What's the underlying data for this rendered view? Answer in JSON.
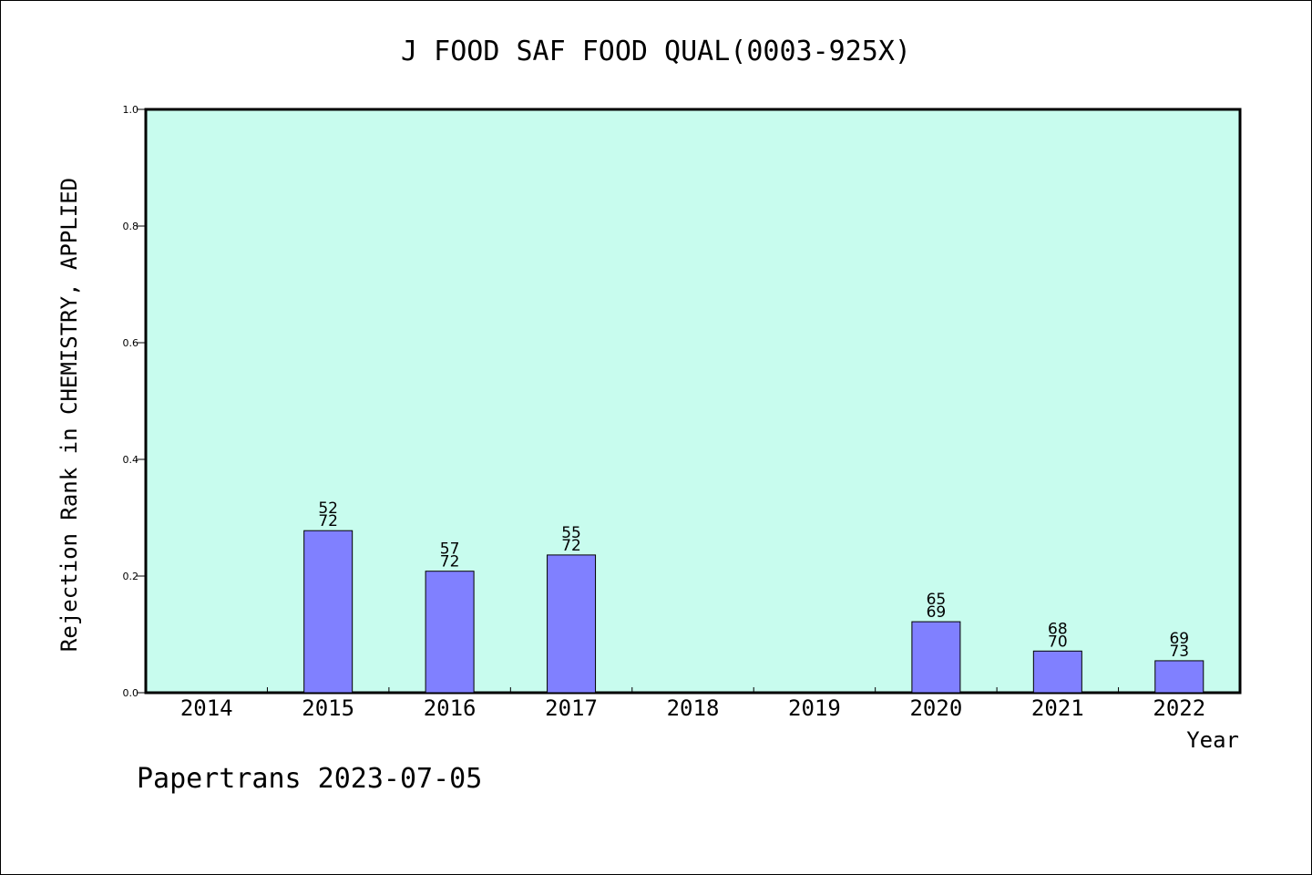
{
  "chart_data": {
    "type": "bar",
    "title": "J FOOD SAF FOOD QUAL(0003-925X)",
    "xlabel": "Year",
    "ylabel": "Rejection Rank in CHEMISTRY, APPLIED",
    "categories": [
      "2014",
      "2015",
      "2016",
      "2017",
      "2018",
      "2019",
      "2020",
      "2021",
      "2022"
    ],
    "values": [
      null,
      0.2778,
      0.2083,
      0.2361,
      null,
      null,
      0.1217,
      0.0714,
      0.0548
    ],
    "labels_top": [
      "",
      "52",
      "57",
      "55",
      "",
      "",
      "65",
      "68",
      "69"
    ],
    "labels_bottom": [
      "",
      "72",
      "72",
      "72",
      "",
      "",
      "69",
      "70",
      "73"
    ],
    "ylim": [
      0,
      1.0
    ],
    "yticks": [
      "0.0",
      "0.2",
      "0.4",
      "0.6",
      "0.8",
      "1.0"
    ],
    "grid": false,
    "colors": {
      "plot_background": "#c8fcee",
      "bar_fill": "#8080ff",
      "bar_stroke": "#000000"
    }
  },
  "footer": {
    "credit": "Papertrans 2023-07-05"
  }
}
